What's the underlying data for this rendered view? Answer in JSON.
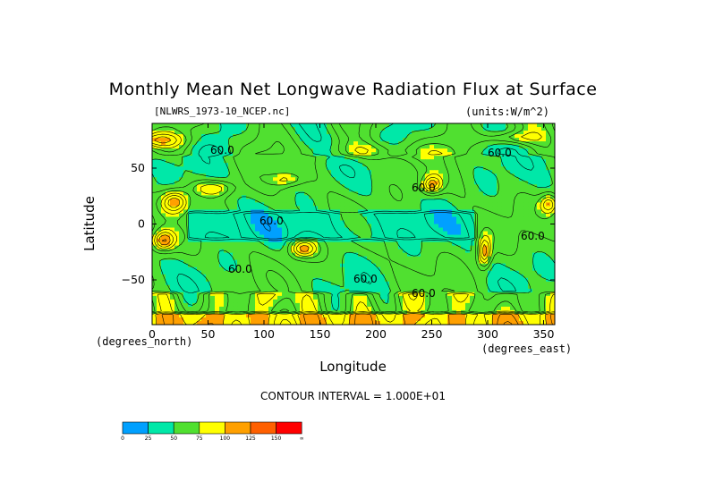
{
  "chart_data": {
    "type": "heatmap",
    "title": "Monthly Mean Net Longwave Radiation Flux at Surface",
    "dataset_label": "[NLWRS_1973-10_NCEP.nc]",
    "units_label": "(units:W/m^2)",
    "xlabel": "Longitude",
    "ylabel": "Latitude",
    "xlabel_units": "(degrees_east)",
    "ylabel_units": "(degrees_north)",
    "xlim": [
      0,
      360
    ],
    "ylim": [
      -90,
      90
    ],
    "x_ticks": [
      0,
      50,
      100,
      150,
      200,
      250,
      300,
      350
    ],
    "x_tick_labels": [
      "0",
      "50",
      "100",
      "150",
      "200",
      "250",
      "300",
      "350"
    ],
    "y_ticks": [
      50,
      0,
      -50
    ],
    "y_tick_labels": [
      "50",
      "0",
      "−50"
    ],
    "contour_interval_text": "CONTOUR INTERVAL = 1.000E+01",
    "contour_labels": [
      "60.0",
      "60.0",
      "60.0",
      "60.0",
      "60.0",
      "60.0",
      "60.0",
      "60.0"
    ],
    "colorbar": {
      "levels": [
        0,
        25,
        50,
        75,
        100,
        125,
        150
      ],
      "level_labels": [
        "0",
        "25",
        "50",
        "75",
        "100",
        "125",
        "150",
        "∞"
      ],
      "colors": [
        "#00a0ff",
        "#00e8a8",
        "#50e030",
        "#ffff00",
        "#ffa000",
        "#ff6000",
        "#ff0000"
      ]
    }
  }
}
